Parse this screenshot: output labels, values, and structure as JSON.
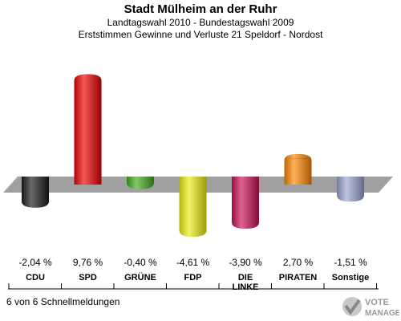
{
  "header": {
    "title": "Stadt Mülheim an der Ruhr",
    "subtitle1": "Landtagswahl 2010 - Bundestagswahl 2009",
    "subtitle2": "Erststimmen Gewinne und Verluste 21 Speldorf - Nordost"
  },
  "footer": {
    "note": "6 von 6 Schnellmeldungen"
  },
  "logo": {
    "line1": "VOTE",
    "line2": "MANAGER"
  },
  "chart_data": {
    "type": "bar",
    "title": "Stadt Mülheim an der Ruhr",
    "categories": [
      "CDU",
      "SPD",
      "GRÜNE",
      "FDP",
      "DIE LINKE",
      "PIRATEN",
      "Sonstige"
    ],
    "values": [
      -2.04,
      9.76,
      -0.4,
      -4.61,
      -3.9,
      2.7,
      -1.51
    ],
    "value_labels": [
      "-2,04 %",
      "9,76 %",
      "-0,40 %",
      "-4,61 %",
      "-3,90 %",
      "2,70 %",
      "-1,51 %"
    ],
    "colors": [
      "#1a1a1a",
      "#ee0000",
      "#44aa22",
      "#eeee11",
      "#cc1155",
      "#ff8800",
      "#99a5d0"
    ],
    "baseline": 0,
    "grid": false
  }
}
